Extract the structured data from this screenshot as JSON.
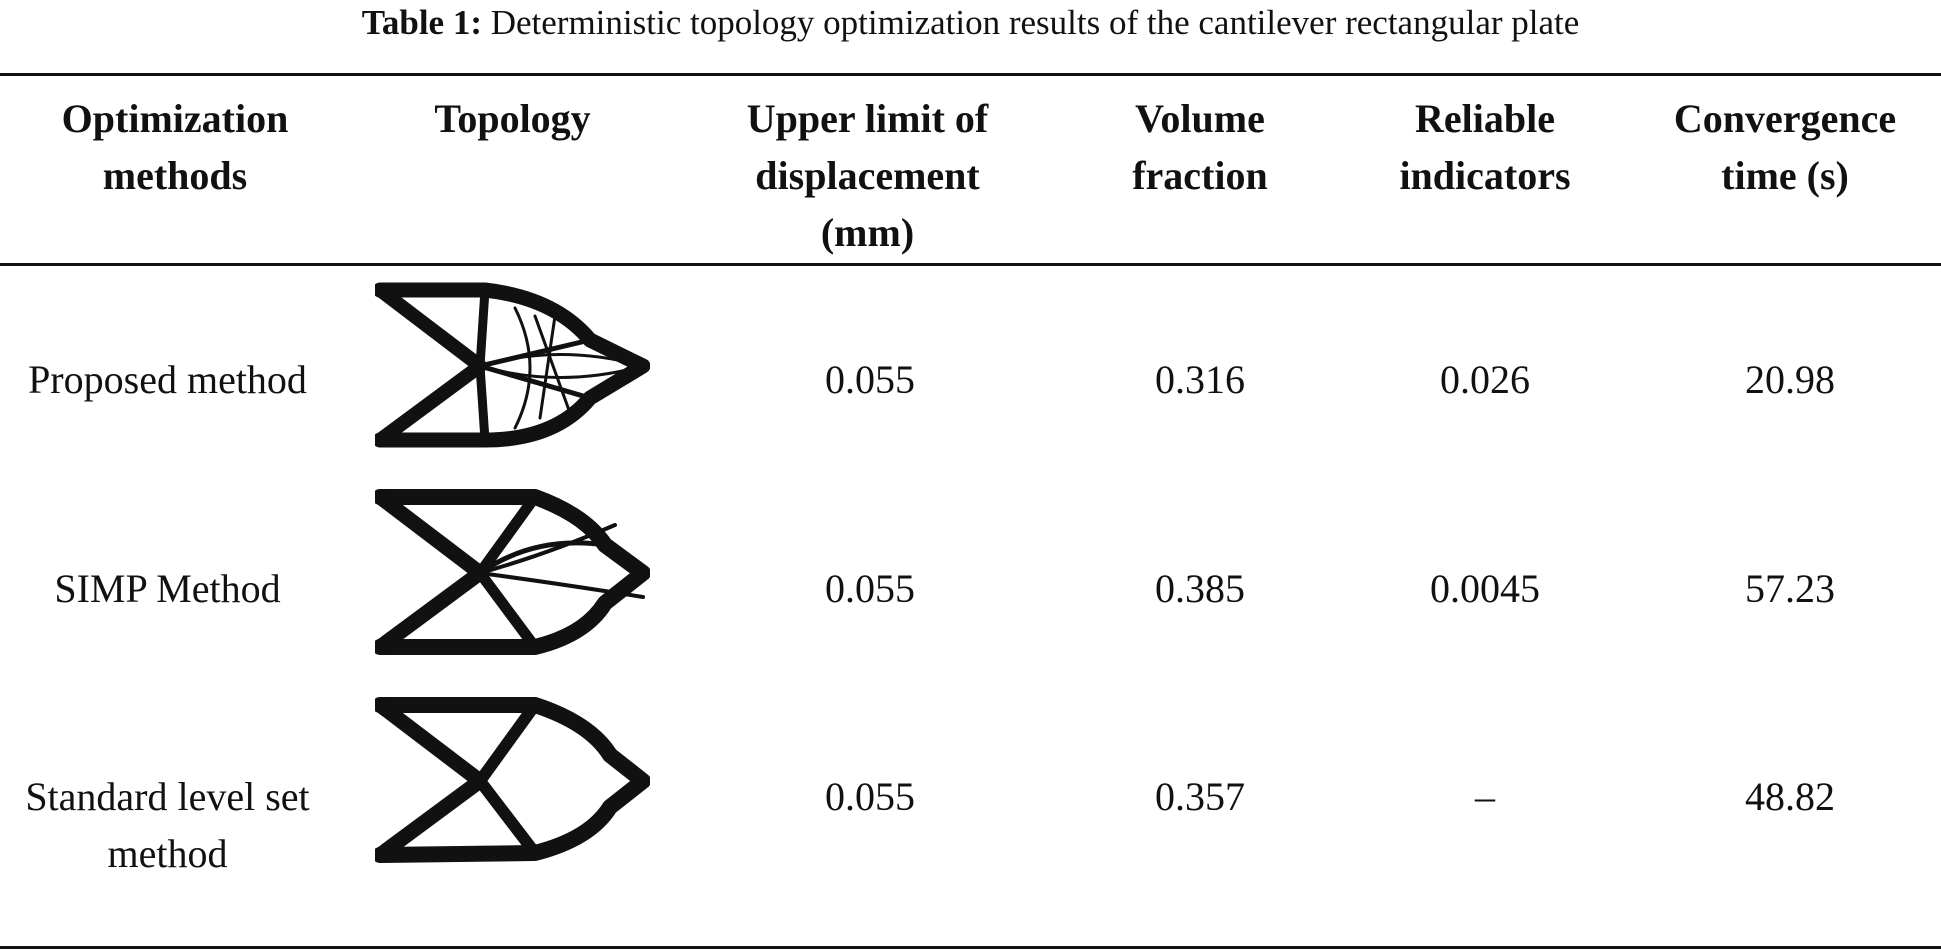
{
  "caption": {
    "label": "Table 1:",
    "text": "Deterministic topology optimization results of the cantilever rectangular plate"
  },
  "headers": {
    "method": [
      "Optimization",
      "methods"
    ],
    "topology": [
      "Topology"
    ],
    "displacement": [
      "Upper limit of",
      "displacement",
      "(mm)"
    ],
    "volume": [
      "Volume",
      "fraction"
    ],
    "reliable": [
      "Reliable",
      "indicators"
    ],
    "convergence": [
      "Convergence",
      "time (s)"
    ]
  },
  "rows": [
    {
      "method": [
        "Proposed method"
      ],
      "displacement": "0.055",
      "volume": "0.316",
      "reliable": "0.026",
      "convergence": "20.98"
    },
    {
      "method": [
        "SIMP Method"
      ],
      "displacement": "0.055",
      "volume": "0.385",
      "reliable": "0.0045",
      "convergence": "57.23"
    },
    {
      "method": [
        "Standard level set",
        "method"
      ],
      "displacement": "0.055",
      "volume": "0.357",
      "reliable": "–",
      "convergence": "48.82"
    }
  ]
}
